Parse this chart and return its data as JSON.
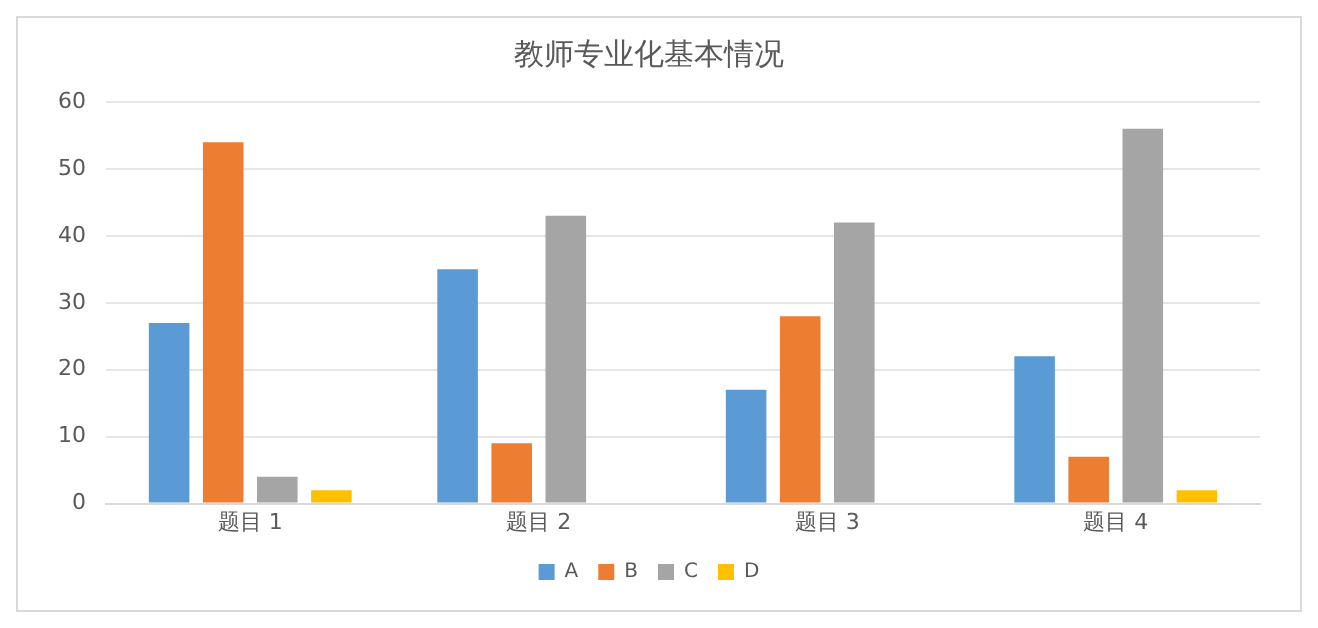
{
  "chart_data": {
    "type": "bar",
    "title": "教师专业化基本情况",
    "categories": [
      "题目 1",
      "题目 2",
      "题目 3",
      "题目 4"
    ],
    "series": [
      {
        "name": "A",
        "color": "#5b9bd5",
        "values": [
          27,
          35,
          17,
          22
        ]
      },
      {
        "name": "B",
        "color": "#ed7d31",
        "values": [
          54,
          9,
          28,
          7
        ]
      },
      {
        "name": "C",
        "color": "#a5a5a5",
        "values": [
          4,
          43,
          42,
          56
        ]
      },
      {
        "name": "D",
        "color": "#ffc000",
        "values": [
          2,
          null,
          null,
          2
        ]
      }
    ],
    "ylim": [
      0,
      60
    ],
    "yticks": [
      0,
      10,
      20,
      30,
      40,
      50,
      60
    ],
    "grid": "y",
    "legend": "bottom"
  }
}
